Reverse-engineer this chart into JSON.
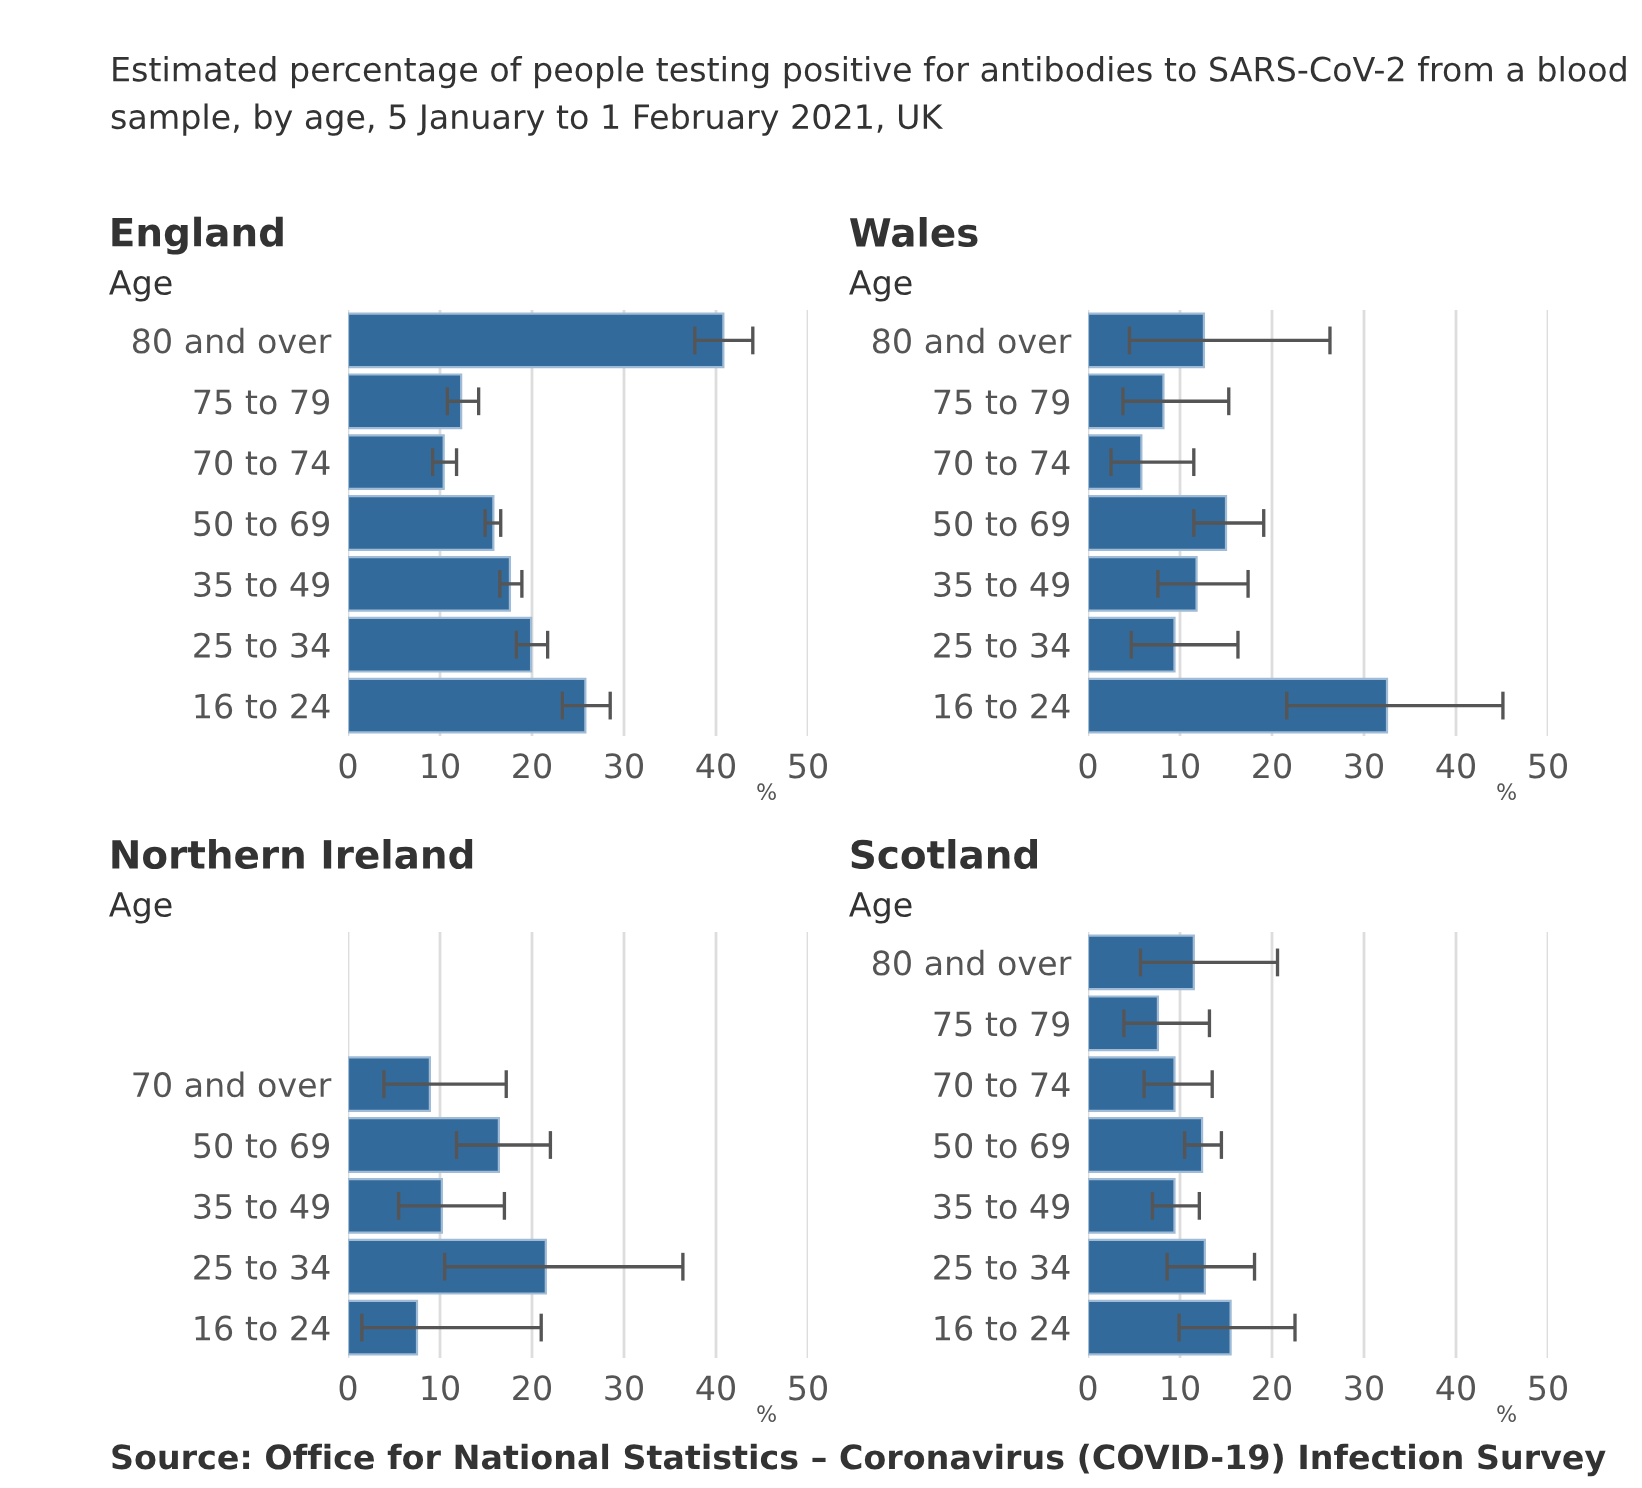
{
  "chart_data": [
    {
      "type": "bar",
      "orientation": "horizontal",
      "title": "England",
      "ylabel": "Age",
      "xlabel": "%",
      "annotations": [
        "Estimated percentage of people testing positive for antibodies to SARS-CoV-2 from a blood sample, by age, 5 January to 1 February 2021, UK"
      ],
      "categories": [
        "80 and over",
        "75 to 79",
        "70 to 74",
        "50 to 69",
        "35 to 49",
        "25 to 34",
        "16 to 24"
      ],
      "values": [
        40.8,
        12.3,
        10.4,
        15.8,
        17.6,
        19.9,
        25.8
      ],
      "errors": [
        [
          37.7,
          44.0
        ],
        [
          10.8,
          14.2
        ],
        [
          9.2,
          11.8
        ],
        [
          14.9,
          16.6
        ],
        [
          16.5,
          18.9
        ],
        [
          18.3,
          21.7
        ],
        [
          23.3,
          28.5
        ]
      ],
      "color": "#336a9c",
      "xlim": [
        0,
        50
      ],
      "xticks": [
        0,
        10,
        20,
        30,
        40,
        50
      ],
      "grid": "x"
    },
    {
      "type": "bar",
      "orientation": "horizontal",
      "title": "Wales",
      "ylabel": "Age",
      "xlabel": "%",
      "categories": [
        "80 and over",
        "75 to 79",
        "70 to 74",
        "50 to 69",
        "35 to 49",
        "25 to 34",
        "16 to 24"
      ],
      "values": [
        12.6,
        8.2,
        5.8,
        15.0,
        11.8,
        9.4,
        32.5
      ],
      "errors": [
        [
          4.5,
          26.3
        ],
        [
          3.8,
          15.3
        ],
        [
          2.5,
          11.5
        ],
        [
          11.5,
          19.1
        ],
        [
          7.6,
          17.4
        ],
        [
          4.7,
          16.3
        ],
        [
          21.6,
          45.1
        ]
      ],
      "color": "#336a9c",
      "xlim": [
        0,
        50
      ],
      "xticks": [
        0,
        10,
        20,
        30,
        40,
        50
      ],
      "grid": "x"
    },
    {
      "type": "bar",
      "orientation": "horizontal",
      "title": "Northern Ireland",
      "ylabel": "Age",
      "xlabel": "%",
      "categories": [
        null,
        null,
        "70 and over",
        "50 to 69",
        "35 to 49",
        "25 to 34",
        "16 to 24"
      ],
      "values": [
        null,
        null,
        8.9,
        16.4,
        10.2,
        21.5,
        7.5
      ],
      "errors": [
        null,
        null,
        [
          3.9,
          17.2
        ],
        [
          11.8,
          22.0
        ],
        [
          5.5,
          17.0
        ],
        [
          10.5,
          36.4
        ],
        [
          1.5,
          21.0
        ]
      ],
      "color": "#336a9c",
      "xlim": [
        0,
        50
      ],
      "xticks": [
        0,
        10,
        20,
        30,
        40,
        50
      ],
      "grid": "x"
    },
    {
      "type": "bar",
      "orientation": "horizontal",
      "title": "Scotland",
      "ylabel": "Age",
      "xlabel": "%",
      "annotations": [
        "Source: Office for National Statistics – Coronavirus (COVID-19) Infection Survey"
      ],
      "categories": [
        "80 and over",
        "75 to 79",
        "70 to 74",
        "50 to 69",
        "35 to 49",
        "25 to 34",
        "16 to 24"
      ],
      "values": [
        11.5,
        7.6,
        9.4,
        12.4,
        9.4,
        12.7,
        15.5
      ],
      "errors": [
        [
          5.7,
          20.6
        ],
        [
          3.9,
          13.2
        ],
        [
          6.1,
          13.5
        ],
        [
          10.5,
          14.5
        ],
        [
          7.0,
          12.1
        ],
        [
          8.6,
          18.1
        ],
        [
          9.9,
          22.5
        ]
      ],
      "color": "#336a9c",
      "xlim": [
        0,
        50
      ],
      "xticks": [
        0,
        10,
        20,
        30,
        40,
        50
      ],
      "grid": "x"
    }
  ]
}
